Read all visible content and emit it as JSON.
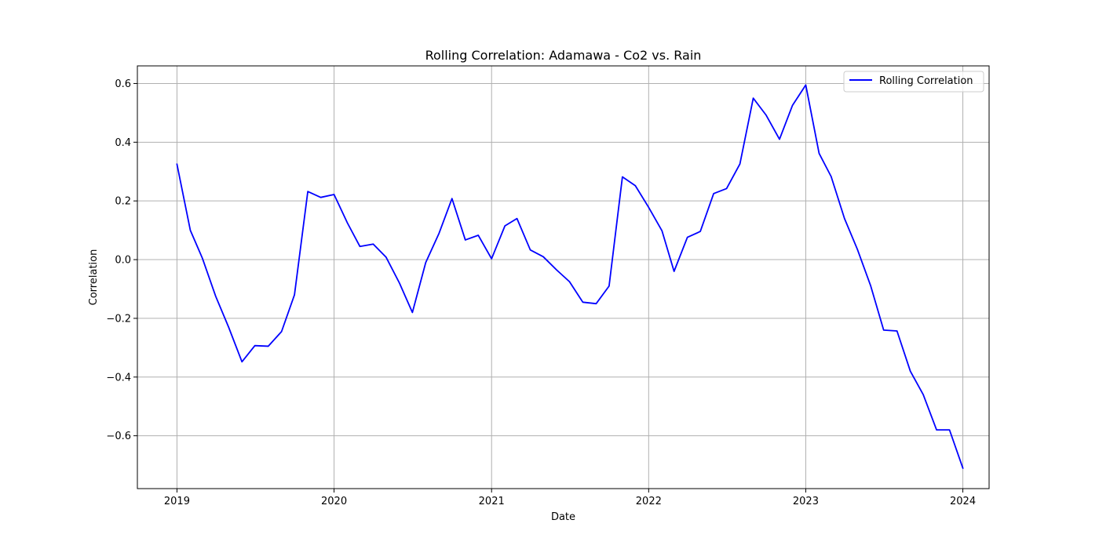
{
  "chart_data": {
    "type": "line",
    "title": "Rolling Correlation: Adamawa - Co2 vs. Rain",
    "xlabel": "Date",
    "ylabel": "Correlation",
    "xlim": [
      "2018-10-01",
      "2024-03-02"
    ],
    "ylim": [
      -0.78,
      0.66
    ],
    "x_ticks": [
      "2019",
      "2020",
      "2021",
      "2022",
      "2023",
      "2024"
    ],
    "y_ticks": [
      -0.6,
      -0.4,
      -0.2,
      0.0,
      0.2,
      0.4,
      0.6
    ],
    "y_tick_labels": [
      "−0.6",
      "−0.4",
      "−0.2",
      "0.0",
      "0.2",
      "0.4",
      "0.6"
    ],
    "grid": true,
    "legend": {
      "position": "top-right"
    },
    "series": [
      {
        "name": "Rolling Correlation",
        "color": "#0000ff",
        "x": [
          "2019-01-01",
          "2019-02-01",
          "2019-03-01",
          "2019-04-01",
          "2019-05-01",
          "2019-06-01",
          "2019-07-01",
          "2019-08-01",
          "2019-09-01",
          "2019-10-01",
          "2019-11-01",
          "2019-12-01",
          "2020-01-01",
          "2020-02-01",
          "2020-03-01",
          "2020-04-01",
          "2020-05-01",
          "2020-06-01",
          "2020-07-01",
          "2020-08-01",
          "2020-09-01",
          "2020-10-01",
          "2020-11-01",
          "2020-12-01",
          "2021-01-01",
          "2021-02-01",
          "2021-03-01",
          "2021-04-01",
          "2021-05-01",
          "2021-06-01",
          "2021-07-01",
          "2021-08-01",
          "2021-09-01",
          "2021-10-01",
          "2021-11-01",
          "2021-12-01",
          "2022-01-01",
          "2022-02-01",
          "2022-03-01",
          "2022-04-01",
          "2022-05-01",
          "2022-06-01",
          "2022-07-01",
          "2022-08-01",
          "2022-09-01",
          "2022-10-01",
          "2022-11-01",
          "2022-12-01",
          "2023-01-01",
          "2023-02-01",
          "2023-03-01",
          "2023-04-01",
          "2023-05-01",
          "2023-06-01",
          "2023-07-01",
          "2023-08-01",
          "2023-09-01",
          "2023-10-01",
          "2023-11-01",
          "2023-12-01",
          "2024-01-01"
        ],
        "values": [
          0.325,
          0.1,
          0.005,
          -0.125,
          -0.23,
          -0.348,
          -0.293,
          -0.295,
          -0.245,
          -0.12,
          0.232,
          0.212,
          0.222,
          0.125,
          0.045,
          0.053,
          0.008,
          -0.08,
          -0.18,
          -0.01,
          0.09,
          0.208,
          0.067,
          0.083,
          0.003,
          0.115,
          0.14,
          0.033,
          0.01,
          -0.035,
          -0.075,
          -0.145,
          -0.15,
          -0.09,
          0.282,
          0.252,
          0.178,
          0.098,
          -0.04,
          0.076,
          0.096,
          0.225,
          0.242,
          0.326,
          0.55,
          0.492,
          0.41,
          0.525,
          0.595,
          0.362,
          0.283,
          0.14,
          0.035,
          -0.09,
          -0.24,
          -0.243,
          -0.38,
          -0.46,
          -0.58,
          -0.58,
          -0.71
        ]
      }
    ]
  }
}
